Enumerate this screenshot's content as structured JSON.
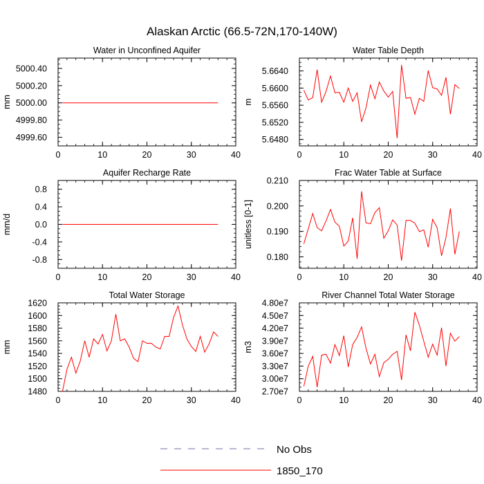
{
  "figure_title": "Alaskan Arctic (66.5-72N,170-140W)",
  "legend": [
    {
      "label": "No Obs",
      "color": "#6e6ea8",
      "dash": true
    },
    {
      "label": "1850_170",
      "color": "#ff0000",
      "dash": false
    }
  ],
  "chart_data": [
    {
      "type": "line",
      "title": "Water in Unconfined Aquifer",
      "ylabel": "mm",
      "xlim": [
        0,
        40
      ],
      "xticks": [
        0,
        10,
        20,
        30,
        40
      ],
      "ylim": [
        4999.5,
        5000.52
      ],
      "yticks": [
        4999.6,
        4999.8,
        5000.0,
        5000.2,
        5000.4
      ],
      "ytick_labels": [
        "4999.60",
        "4999.80",
        "5000.00",
        "5000.20",
        "5000.40"
      ],
      "minor_ystep": 0.05,
      "series": [
        {
          "color": "#ff0000",
          "x": [
            1,
            2,
            3,
            4,
            5,
            6,
            7,
            8,
            9,
            10,
            11,
            12,
            13,
            14,
            15,
            16,
            17,
            18,
            19,
            20,
            21,
            22,
            23,
            24,
            25,
            26,
            27,
            28,
            29,
            30,
            31,
            32,
            33,
            34,
            35,
            36
          ],
          "y": [
            5000,
            5000,
            5000,
            5000,
            5000,
            5000,
            5000,
            5000,
            5000,
            5000,
            5000,
            5000,
            5000,
            5000,
            5000,
            5000,
            5000,
            5000,
            5000,
            5000,
            5000,
            5000,
            5000,
            5000,
            5000,
            5000,
            5000,
            5000,
            5000,
            5000,
            5000,
            5000,
            5000,
            5000,
            5000,
            5000
          ]
        }
      ]
    },
    {
      "type": "line",
      "title": "Water Table Depth",
      "ylabel": "m",
      "xlim": [
        0,
        40
      ],
      "xticks": [
        0,
        10,
        20,
        30,
        40
      ],
      "ylim": [
        5.6465,
        5.667
      ],
      "yticks": [
        5.648,
        5.652,
        5.656,
        5.66,
        5.664
      ],
      "ytick_labels": [
        "5.6480",
        "5.6520",
        "5.6560",
        "5.6600",
        "5.6640"
      ],
      "minor_ystep": 0.001,
      "series": [
        {
          "color": "#ff0000",
          "x": [
            1,
            2,
            3,
            4,
            5,
            6,
            7,
            8,
            9,
            10,
            11,
            12,
            13,
            14,
            15,
            16,
            17,
            18,
            19,
            20,
            21,
            22,
            23,
            24,
            25,
            26,
            27,
            28,
            29,
            30,
            31,
            32,
            33,
            34,
            35,
            36
          ],
          "y": [
            5.6595,
            5.6572,
            5.6578,
            5.6643,
            5.6567,
            5.6592,
            5.6628,
            5.6589,
            5.659,
            5.6567,
            5.66,
            5.6569,
            5.6589,
            5.6521,
            5.6554,
            5.6607,
            5.6575,
            5.6614,
            5.6593,
            5.6579,
            5.6592,
            5.6483,
            5.6654,
            5.6576,
            5.6578,
            5.6539,
            5.6576,
            5.6569,
            5.6641,
            5.6601,
            5.6598,
            5.6583,
            5.6625,
            5.6539,
            5.6608,
            5.6599
          ]
        }
      ]
    },
    {
      "type": "line",
      "title": "Aquifer Recharge Rate",
      "ylabel": "mm/d",
      "xlim": [
        0,
        40
      ],
      "xticks": [
        0,
        10,
        20,
        30,
        40
      ],
      "ylim": [
        -1.0,
        1.0
      ],
      "yticks": [
        -0.8,
        -0.4,
        0.0,
        0.4,
        0.8
      ],
      "ytick_labels": [
        "-0.8",
        "-0.4",
        "0.0",
        "0.4",
        "0.8"
      ],
      "minor_ystep": 0.1,
      "series": [
        {
          "color": "#ff0000",
          "x": [
            1,
            2,
            3,
            4,
            5,
            6,
            7,
            8,
            9,
            10,
            11,
            12,
            13,
            14,
            15,
            16,
            17,
            18,
            19,
            20,
            21,
            22,
            23,
            24,
            25,
            26,
            27,
            28,
            29,
            30,
            31,
            32,
            33,
            34,
            35,
            36
          ],
          "y": [
            0,
            0,
            0,
            0,
            0,
            0,
            0,
            0,
            0,
            0,
            0,
            0,
            0,
            0,
            0,
            0,
            0,
            0,
            0,
            0,
            0,
            0,
            0,
            0,
            0,
            0,
            0,
            0,
            0,
            0,
            0,
            0,
            0,
            0,
            0,
            0
          ]
        }
      ]
    },
    {
      "type": "line",
      "title": "Frac Water Table at Surface",
      "ylabel": "unitless [0-1]",
      "xlim": [
        0,
        40
      ],
      "xticks": [
        0,
        10,
        20,
        30,
        40
      ],
      "ylim": [
        0.1755,
        0.21
      ],
      "yticks": [
        0.18,
        0.19,
        0.2,
        0.21
      ],
      "ytick_labels": [
        "0.180",
        "0.190",
        "0.200",
        "0.210"
      ],
      "minor_ystep": 0.002,
      "series": [
        {
          "color": "#ff0000",
          "x": [
            1,
            2,
            3,
            4,
            5,
            6,
            7,
            8,
            9,
            10,
            11,
            12,
            13,
            14,
            15,
            16,
            17,
            18,
            19,
            20,
            21,
            22,
            23,
            24,
            25,
            26,
            27,
            28,
            29,
            30,
            31,
            32,
            33,
            34,
            35,
            36
          ],
          "y": [
            0.1851,
            0.191,
            0.197,
            0.1915,
            0.1902,
            0.1941,
            0.1986,
            0.1936,
            0.192,
            0.1842,
            0.1862,
            0.1953,
            0.1792,
            0.2057,
            0.1933,
            0.193,
            0.1974,
            0.1993,
            0.1873,
            0.1902,
            0.1945,
            0.1925,
            0.1785,
            0.1943,
            0.1943,
            0.1932,
            0.1899,
            0.1906,
            0.1838,
            0.1947,
            0.1915,
            0.1804,
            0.1876,
            0.199,
            0.181,
            0.19
          ]
        }
      ]
    },
    {
      "type": "line",
      "title": "Total Water Storage",
      "ylabel": "mm",
      "xlim": [
        0,
        40
      ],
      "xticks": [
        0,
        10,
        20,
        30,
        40
      ],
      "ylim": [
        1480,
        1620
      ],
      "yticks": [
        1480,
        1500,
        1520,
        1540,
        1560,
        1580,
        1600,
        1620
      ],
      "ytick_labels": [
        "1480",
        "1500",
        "1520",
        "1540",
        "1560",
        "1580",
        "1600",
        "1620"
      ],
      "minor_ystep": 5,
      "series": [
        {
          "color": "#ff0000",
          "x": [
            1,
            2,
            3,
            4,
            5,
            6,
            7,
            8,
            9,
            10,
            11,
            12,
            13,
            14,
            15,
            16,
            17,
            18,
            19,
            20,
            21,
            22,
            23,
            24,
            25,
            26,
            27,
            28,
            29,
            30,
            31,
            32,
            33,
            34,
            35,
            36
          ],
          "y": [
            1480,
            1515,
            1534,
            1509,
            1528,
            1560,
            1534,
            1563,
            1555,
            1570,
            1544,
            1560,
            1602,
            1560,
            1563,
            1550,
            1532,
            1527,
            1560,
            1556,
            1556,
            1550,
            1547,
            1567,
            1567,
            1597,
            1615,
            1585,
            1563,
            1551,
            1543,
            1567,
            1542,
            1555,
            1574,
            1567
          ]
        }
      ]
    },
    {
      "type": "line",
      "title": "River Channel Total Water Storage",
      "ylabel": "m3",
      "xlim": [
        0,
        40
      ],
      "xticks": [
        0,
        10,
        20,
        30,
        40
      ],
      "ylim": [
        27000000,
        48000000
      ],
      "yticks": [
        27000000,
        30000000,
        33000000,
        36000000,
        39000000,
        42000000,
        45000000,
        48000000
      ],
      "ytick_labels": [
        "2.70e7",
        "3.00e7",
        "3.30e7",
        "3.60e7",
        "3.90e7",
        "4.20e7",
        "4.50e7",
        "4.80e7"
      ],
      "minor_ystep": 1000000,
      "series": [
        {
          "color": "#ff0000",
          "x": [
            1,
            2,
            3,
            4,
            5,
            6,
            7,
            8,
            9,
            10,
            11,
            12,
            13,
            14,
            15,
            16,
            17,
            18,
            19,
            20,
            21,
            22,
            23,
            24,
            25,
            26,
            27,
            28,
            29,
            30,
            31,
            32,
            33,
            34,
            35,
            36
          ],
          "y": [
            28200000,
            33000000,
            35300000,
            28000000,
            35600000,
            35800000,
            33700000,
            38100000,
            35500000,
            40200000,
            32800000,
            38100000,
            39800000,
            42300000,
            37200000,
            33500000,
            35800000,
            30500000,
            33800000,
            34600000,
            35800000,
            36500000,
            29700000,
            40400000,
            36600000,
            45800000,
            42700000,
            38900000,
            35100000,
            38200000,
            35600000,
            42100000,
            33000000,
            40800000,
            38900000,
            40000000
          ]
        }
      ]
    }
  ]
}
